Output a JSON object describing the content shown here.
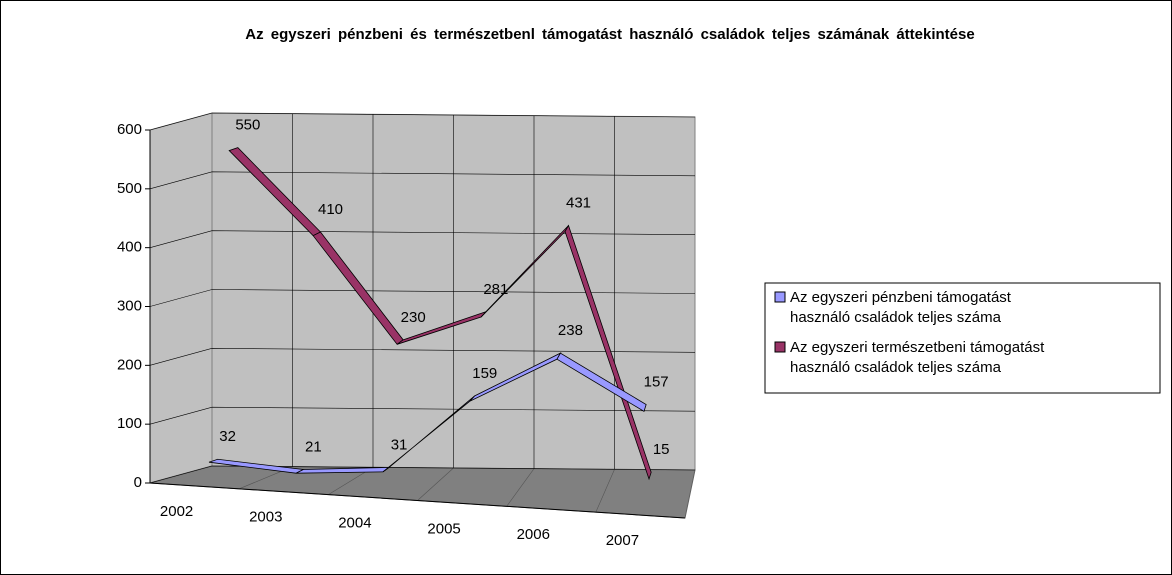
{
  "chart_data": {
    "type": "line3d",
    "title": "Az egyszeri pénzbeni és természetbenl támogatást használó családok teljes számának áttekintése",
    "categories": [
      "2002",
      "2003",
      "2004",
      "2005",
      "2006",
      "2007"
    ],
    "series": [
      {
        "name": "Az egyszeri pénzbeni támogatást használó családok teljes száma",
        "color": "#9999ff",
        "values": [
          32,
          21,
          31,
          159,
          238,
          157
        ]
      },
      {
        "name": "Az egyszeri természetbeni támogatást használó családok teljes száma",
        "color": "#993366",
        "values": [
          550,
          410,
          230,
          281,
          431,
          15
        ]
      }
    ],
    "ylim": [
      0,
      600
    ],
    "yticks": [
      0,
      100,
      200,
      300,
      400,
      500,
      600
    ],
    "grid": true,
    "legend": "right"
  }
}
